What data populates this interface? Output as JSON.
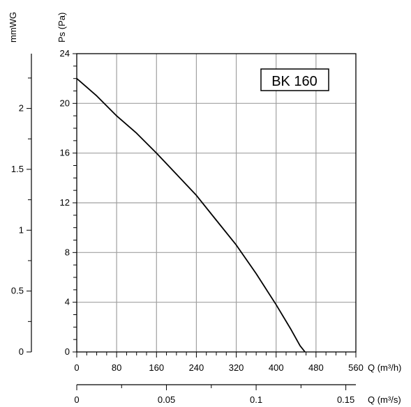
{
  "chart_data": {
    "type": "line",
    "title": "BK 160",
    "series": [
      {
        "name": "BK 160",
        "x": [
          0,
          20,
          40,
          80,
          120,
          160,
          200,
          240,
          280,
          320,
          360,
          400,
          430,
          448,
          458
        ],
        "values": [
          22.0,
          21.3,
          20.6,
          19.0,
          17.6,
          16.0,
          14.3,
          12.6,
          10.6,
          8.6,
          6.3,
          3.8,
          1.8,
          0.5,
          0
        ]
      }
    ],
    "axes": {
      "x_primary": {
        "label": "Q (m³/h)",
        "ticks": [
          "0",
          "80",
          "160",
          "240",
          "320",
          "400",
          "480",
          "560"
        ],
        "range": [
          0,
          560
        ],
        "minor_step": 20
      },
      "x_secondary": {
        "label": "Q (m³/s)",
        "ticks": [
          "0",
          "0.05",
          "0.1",
          "0.15"
        ],
        "tick_values": [
          0,
          0.05,
          0.1,
          0.15
        ],
        "range": [
          0,
          0.1556
        ]
      },
      "y_primary": {
        "label": "Ps (Pa)",
        "ticks": [
          "0",
          "4",
          "8",
          "12",
          "16",
          "20",
          "24"
        ],
        "range": [
          0,
          24
        ],
        "minor_step": 1
      },
      "y_secondary": {
        "label": "mmWG",
        "ticks": [
          "0",
          "0.5",
          "1",
          "1.5",
          "2"
        ],
        "tick_values": [
          0,
          0.5,
          1,
          1.5,
          2
        ],
        "range": [
          0,
          2.45
        ],
        "minor_step": 0.25
      }
    },
    "grid": true,
    "line_color": "#000000",
    "grid_color": "#a0a0a0"
  }
}
